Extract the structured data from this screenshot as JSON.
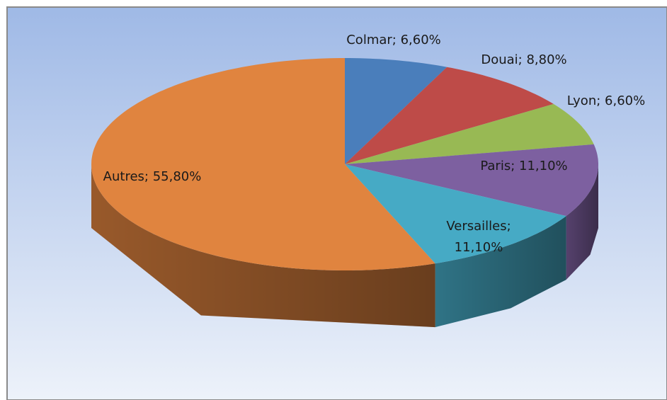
{
  "chart_data": {
    "type": "pie",
    "values": [
      6.6,
      8.8,
      6.6,
      11.1,
      11.1,
      55.8
    ],
    "value_labels": [
      "Colmar; 6,60%",
      "Douai; 8,80%",
      "Lyon; 6,60%",
      "Paris; 11,10%",
      "Versailles; 11,10%",
      "Autres; 55,80%"
    ],
    "colors": [
      "#4a7ebb",
      "#be4b48",
      "#98b954",
      "#7d60a0",
      "#46aac5",
      "#e0843f"
    ]
  }
}
